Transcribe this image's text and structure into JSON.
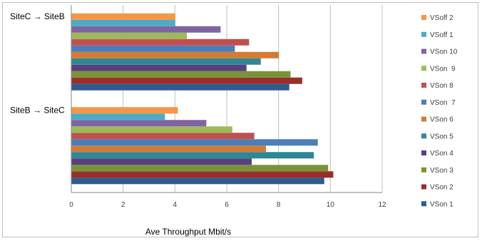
{
  "chart_data": {
    "type": "bar",
    "orientation": "horizontal",
    "title": "",
    "xlabel": "Ave Throughput Mbit/s",
    "ylabel": "",
    "xlim": [
      0,
      12
    ],
    "xticks": [
      "0",
      "2",
      "4",
      "6",
      "8",
      "10",
      "12"
    ],
    "grid": true,
    "legend_position": "right",
    "categories": [
      "SiteB → SiteC",
      "SiteC → SiteB"
    ],
    "series": [
      {
        "name": "VSon 1",
        "color": "#2e5c8c",
        "values": [
          9.75,
          8.4
        ]
      },
      {
        "name": "VSon 2",
        "color": "#9b2d2b",
        "values": [
          10.1,
          8.9
        ]
      },
      {
        "name": "VSon 3",
        "color": "#789439",
        "values": [
          9.9,
          8.45
        ]
      },
      {
        "name": "VSon 4",
        "color": "#5a3f7d",
        "values": [
          6.95,
          6.75
        ]
      },
      {
        "name": "VSon 5",
        "color": "#2f8796",
        "values": [
          9.35,
          7.3
        ]
      },
      {
        "name": "VSon 6",
        "color": "#d17c35",
        "values": [
          7.5,
          8.0
        ]
      },
      {
        "name": "VSon  7",
        "color": "#4a7ebb",
        "values": [
          9.5,
          6.3
        ]
      },
      {
        "name": "VSon 8",
        "color": "#c0504d",
        "values": [
          7.05,
          6.85
        ]
      },
      {
        "name": "VSon  9",
        "color": "#9bbb59",
        "values": [
          6.2,
          4.45
        ]
      },
      {
        "name": "VSon 10",
        "color": "#8064a2",
        "values": [
          5.2,
          5.75
        ]
      },
      {
        "name": "VSoff 1",
        "color": "#4bacc6",
        "values": [
          3.6,
          4.0
        ]
      },
      {
        "name": "VSoff 2",
        "color": "#f79646",
        "values": [
          4.1,
          4.0
        ]
      }
    ]
  }
}
